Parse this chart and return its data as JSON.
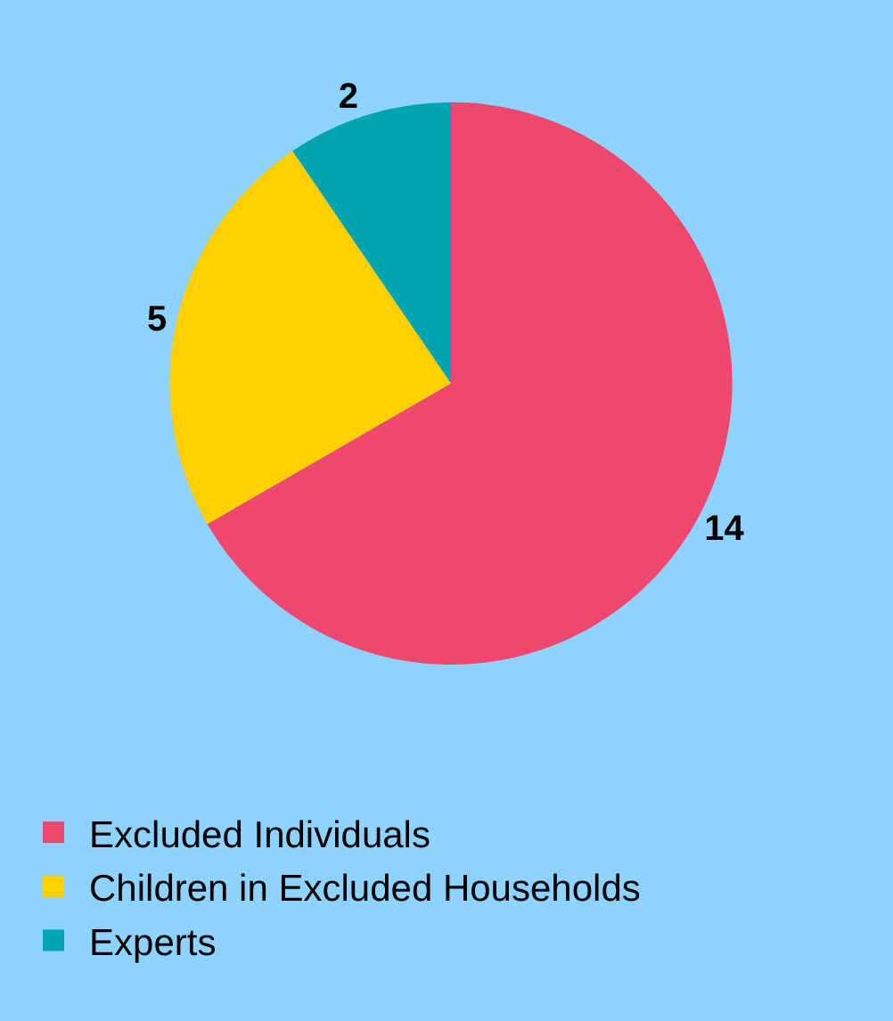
{
  "chart_data": {
    "type": "pie",
    "categories": [
      "Excluded Individuals",
      "Children in Excluded Households",
      "Experts"
    ],
    "values": [
      14,
      5,
      2
    ],
    "colors": [
      "#f0476f",
      "#ffd000",
      "#00a5b0"
    ],
    "data_labels": true,
    "legend": "bottom left"
  }
}
